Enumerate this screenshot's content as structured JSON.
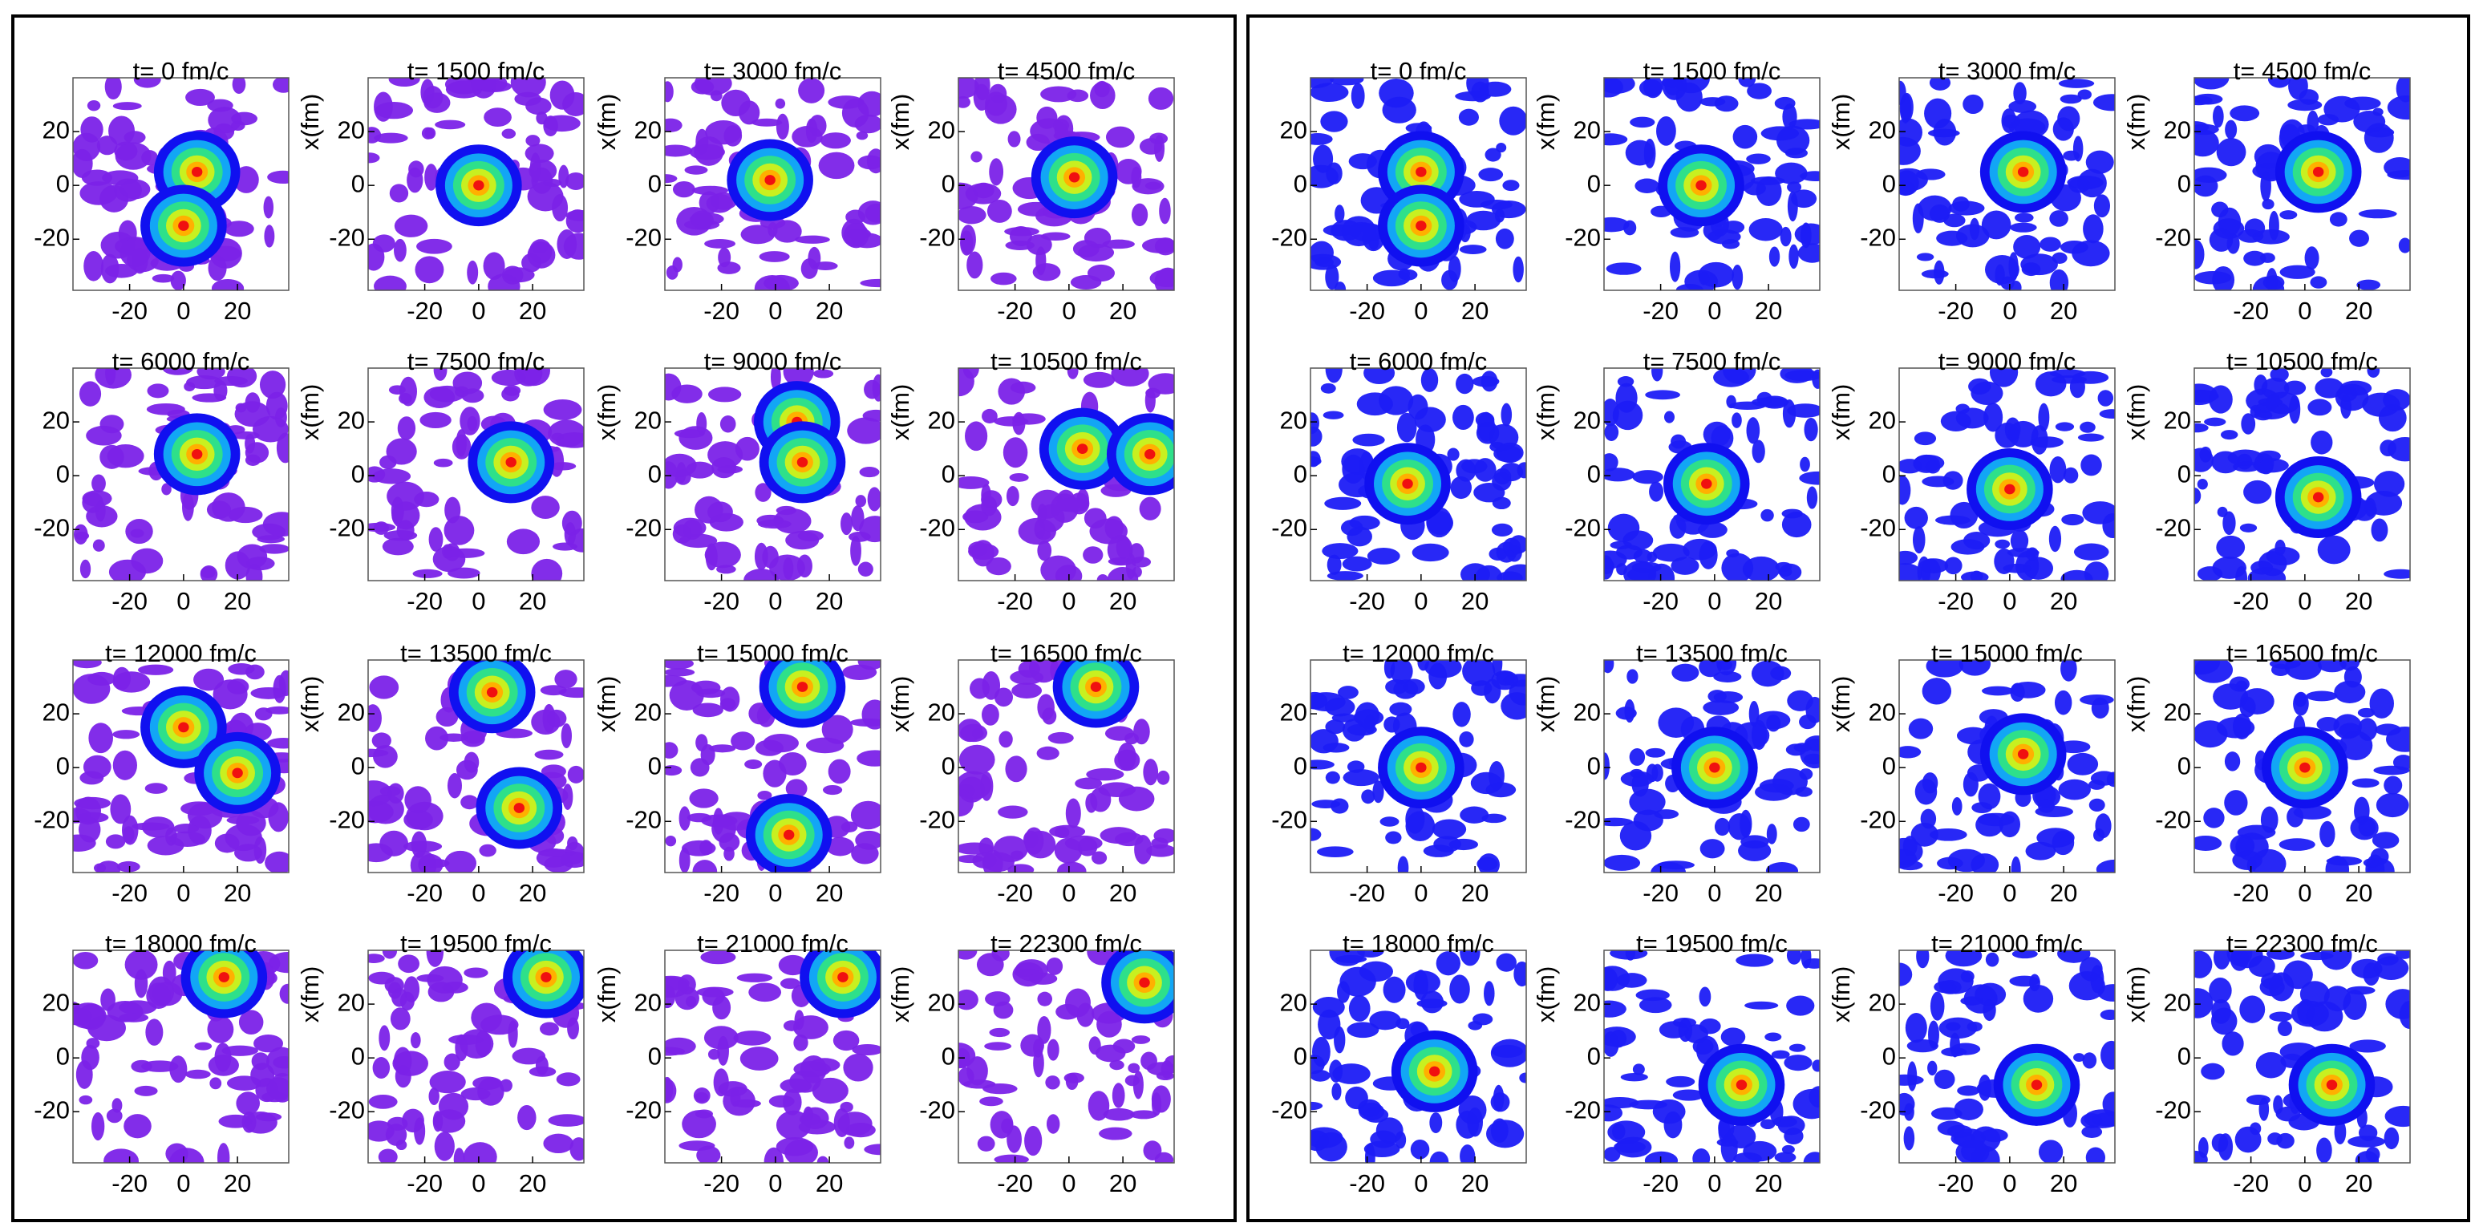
{
  "chart_data": [
    {
      "type": "contour",
      "title": "t= 0 fm/c",
      "xlim": [
        -41,
        39
      ],
      "ylim": [
        -39,
        40
      ],
      "xticks": [
        -20,
        0,
        20
      ],
      "yticks": [
        -20,
        0,
        20
      ],
      "color": "#7b22e8",
      "x": [
        5,
        0
      ],
      "values": [
        5,
        -15
      ]
    },
    {
      "type": "contour",
      "title": "t= 1500 fm/c",
      "xlim": [
        -41,
        39
      ],
      "ylim": [
        -39,
        40
      ],
      "xticks": [
        -20,
        0,
        20
      ],
      "yticks": [
        -20,
        0,
        20
      ],
      "ylabel": "x(fm)",
      "color": "#7b22e8",
      "x": [
        0
      ],
      "values": [
        0
      ]
    },
    {
      "type": "contour",
      "title": "t= 3000 fm/c",
      "xlim": [
        -41,
        39
      ],
      "ylim": [
        -39,
        40
      ],
      "xticks": [
        -20,
        0,
        20
      ],
      "yticks": [
        -20,
        0,
        20
      ],
      "ylabel": "x(fm)",
      "color": "#7b22e8",
      "x": [
        -2
      ],
      "values": [
        2
      ]
    },
    {
      "type": "contour",
      "title": "t= 4500 fm/c",
      "xlim": [
        -41,
        39
      ],
      "ylim": [
        -39,
        40
      ],
      "xticks": [
        -20,
        0,
        20
      ],
      "yticks": [
        -20,
        0,
        20
      ],
      "ylabel": "x(fm)",
      "color": "#7b22e8",
      "x": [
        2
      ],
      "values": [
        3
      ]
    },
    {
      "type": "contour",
      "title": "t= 6000 fm/c",
      "xlim": [
        -41,
        39
      ],
      "ylim": [
        -39,
        40
      ],
      "xticks": [
        -20,
        0,
        20
      ],
      "yticks": [
        -20,
        0,
        20
      ],
      "color": "#7b22e8",
      "x": [
        5
      ],
      "values": [
        8
      ]
    },
    {
      "type": "contour",
      "title": "t= 7500 fm/c",
      "xlim": [
        -41,
        39
      ],
      "ylim": [
        -39,
        40
      ],
      "xticks": [
        -20,
        0,
        20
      ],
      "yticks": [
        -20,
        0,
        20
      ],
      "ylabel": "x(fm)",
      "color": "#7b22e8",
      "x": [
        12
      ],
      "values": [
        5
      ]
    },
    {
      "type": "contour",
      "title": "t= 9000 fm/c",
      "xlim": [
        -41,
        39
      ],
      "ylim": [
        -39,
        40
      ],
      "xticks": [
        -20,
        0,
        20
      ],
      "yticks": [
        -20,
        0,
        20
      ],
      "ylabel": "x(fm)",
      "color": "#7b22e8",
      "x": [
        8,
        10
      ],
      "values": [
        20,
        5
      ]
    },
    {
      "type": "contour",
      "title": "t= 10500 fm/c",
      "xlim": [
        -41,
        39
      ],
      "ylim": [
        -39,
        40
      ],
      "xticks": [
        -20,
        0,
        20
      ],
      "yticks": [
        -20,
        0,
        20
      ],
      "ylabel": "x(fm)",
      "color": "#7b22e8",
      "x": [
        5,
        30
      ],
      "values": [
        10,
        8
      ]
    },
    {
      "type": "contour",
      "title": "t= 12000 fm/c",
      "xlim": [
        -41,
        39
      ],
      "ylim": [
        -39,
        40
      ],
      "xticks": [
        -20,
        0,
        20
      ],
      "yticks": [
        -20,
        0,
        20
      ],
      "color": "#7b22e8",
      "x": [
        0,
        20
      ],
      "values": [
        15,
        -2
      ]
    },
    {
      "type": "contour",
      "title": "t= 13500 fm/c",
      "xlim": [
        -41,
        39
      ],
      "ylim": [
        -39,
        40
      ],
      "xticks": [
        -20,
        0,
        20
      ],
      "yticks": [
        -20,
        0,
        20
      ],
      "ylabel": "x(fm)",
      "color": "#7b22e8",
      "x": [
        5,
        15
      ],
      "values": [
        28,
        -15
      ]
    },
    {
      "type": "contour",
      "title": "t= 15000 fm/c",
      "xlim": [
        -41,
        39
      ],
      "ylim": [
        -39,
        40
      ],
      "xticks": [
        -20,
        0,
        20
      ],
      "yticks": [
        -20,
        0,
        20
      ],
      "ylabel": "x(fm)",
      "color": "#7b22e8",
      "x": [
        10,
        5
      ],
      "values": [
        30,
        -25
      ]
    },
    {
      "type": "contour",
      "title": "t= 16500 fm/c",
      "xlim": [
        -41,
        39
      ],
      "ylim": [
        -39,
        40
      ],
      "xticks": [
        -20,
        0,
        20
      ],
      "yticks": [
        -20,
        0,
        20
      ],
      "ylabel": "x(fm)",
      "color": "#7b22e8",
      "x": [
        10
      ],
      "values": [
        30
      ]
    },
    {
      "type": "contour",
      "title": "t= 18000 fm/c",
      "xlim": [
        -41,
        39
      ],
      "ylim": [
        -39,
        40
      ],
      "xticks": [
        -20,
        0,
        20
      ],
      "yticks": [
        -20,
        0,
        20
      ],
      "color": "#7b22e8",
      "x": [
        15
      ],
      "values": [
        30
      ]
    },
    {
      "type": "contour",
      "title": "t= 19500 fm/c",
      "xlim": [
        -41,
        39
      ],
      "ylim": [
        -39,
        40
      ],
      "xticks": [
        -20,
        0,
        20
      ],
      "yticks": [
        -20,
        0,
        20
      ],
      "ylabel": "x(fm)",
      "color": "#7b22e8",
      "x": [
        25
      ],
      "values": [
        30
      ]
    },
    {
      "type": "contour",
      "title": "t= 21000 fm/c",
      "xlim": [
        -41,
        39
      ],
      "ylim": [
        -39,
        40
      ],
      "xticks": [
        -20,
        0,
        20
      ],
      "yticks": [
        -20,
        0,
        20
      ],
      "ylabel": "x(fm)",
      "color": "#7b22e8",
      "x": [
        25
      ],
      "values": [
        30
      ]
    },
    {
      "type": "contour",
      "title": "t= 22300 fm/c",
      "xlim": [
        -41,
        39
      ],
      "ylim": [
        -39,
        40
      ],
      "xticks": [
        -20,
        0,
        20
      ],
      "yticks": [
        -20,
        0,
        20
      ],
      "ylabel": "x(fm)",
      "color": "#7b22e8",
      "x": [
        28
      ],
      "values": [
        28
      ]
    },
    {
      "type": "contour",
      "title": "t= 0 fm/c",
      "xlim": [
        -41,
        39
      ],
      "ylim": [
        -39,
        40
      ],
      "xticks": [
        -20,
        0,
        20
      ],
      "yticks": [
        -20,
        0,
        20
      ],
      "color": "#1c1cf5",
      "x": [
        0,
        0
      ],
      "values": [
        5,
        -15
      ]
    },
    {
      "type": "contour",
      "title": "t= 1500 fm/c",
      "xlim": [
        -41,
        39
      ],
      "ylim": [
        -39,
        40
      ],
      "xticks": [
        -20,
        0,
        20
      ],
      "yticks": [
        -20,
        0,
        20
      ],
      "ylabel": "x(fm)",
      "color": "#1c1cf5",
      "x": [
        -5
      ],
      "values": [
        0
      ]
    },
    {
      "type": "contour",
      "title": "t= 3000 fm/c",
      "xlim": [
        -41,
        39
      ],
      "ylim": [
        -39,
        40
      ],
      "xticks": [
        -20,
        0,
        20
      ],
      "yticks": [
        -20,
        0,
        20
      ],
      "ylabel": "x(fm)",
      "color": "#1c1cf5",
      "x": [
        5
      ],
      "values": [
        5
      ]
    },
    {
      "type": "contour",
      "title": "t= 4500 fm/c",
      "xlim": [
        -41,
        39
      ],
      "ylim": [
        -39,
        40
      ],
      "xticks": [
        -20,
        0,
        20
      ],
      "yticks": [
        -20,
        0,
        20
      ],
      "ylabel": "x(fm)",
      "color": "#1c1cf5",
      "x": [
        5
      ],
      "values": [
        5
      ]
    },
    {
      "type": "contour",
      "title": "t= 6000 fm/c",
      "xlim": [
        -41,
        39
      ],
      "ylim": [
        -39,
        40
      ],
      "xticks": [
        -20,
        0,
        20
      ],
      "yticks": [
        -20,
        0,
        20
      ],
      "color": "#1c1cf5",
      "x": [
        -5
      ],
      "values": [
        -3
      ]
    },
    {
      "type": "contour",
      "title": "t= 7500 fm/c",
      "xlim": [
        -41,
        39
      ],
      "ylim": [
        -39,
        40
      ],
      "xticks": [
        -20,
        0,
        20
      ],
      "yticks": [
        -20,
        0,
        20
      ],
      "ylabel": "x(fm)",
      "color": "#1c1cf5",
      "x": [
        -3
      ],
      "values": [
        -3
      ]
    },
    {
      "type": "contour",
      "title": "t= 9000 fm/c",
      "xlim": [
        -41,
        39
      ],
      "ylim": [
        -39,
        40
      ],
      "xticks": [
        -20,
        0,
        20
      ],
      "yticks": [
        -20,
        0,
        20
      ],
      "ylabel": "x(fm)",
      "color": "#1c1cf5",
      "x": [
        0
      ],
      "values": [
        -5
      ]
    },
    {
      "type": "contour",
      "title": "t= 10500 fm/c",
      "xlim": [
        -41,
        39
      ],
      "ylim": [
        -39,
        40
      ],
      "xticks": [
        -20,
        0,
        20
      ],
      "yticks": [
        -20,
        0,
        20
      ],
      "ylabel": "x(fm)",
      "color": "#1c1cf5",
      "x": [
        5
      ],
      "values": [
        -8
      ]
    },
    {
      "type": "contour",
      "title": "t= 12000 fm/c",
      "xlim": [
        -41,
        39
      ],
      "ylim": [
        -39,
        40
      ],
      "xticks": [
        -20,
        0,
        20
      ],
      "yticks": [
        -20,
        0,
        20
      ],
      "color": "#1c1cf5",
      "x": [
        0
      ],
      "values": [
        0
      ]
    },
    {
      "type": "contour",
      "title": "t= 13500 fm/c",
      "xlim": [
        -41,
        39
      ],
      "ylim": [
        -39,
        40
      ],
      "xticks": [
        -20,
        0,
        20
      ],
      "yticks": [
        -20,
        0,
        20
      ],
      "ylabel": "x(fm)",
      "color": "#1c1cf5",
      "x": [
        0
      ],
      "values": [
        0
      ]
    },
    {
      "type": "contour",
      "title": "t= 15000 fm/c",
      "xlim": [
        -41,
        39
      ],
      "ylim": [
        -39,
        40
      ],
      "xticks": [
        -20,
        0,
        20
      ],
      "yticks": [
        -20,
        0,
        20
      ],
      "ylabel": "x(fm)",
      "color": "#1c1cf5",
      "x": [
        5
      ],
      "values": [
        5
      ]
    },
    {
      "type": "contour",
      "title": "t= 16500 fm/c",
      "xlim": [
        -41,
        39
      ],
      "ylim": [
        -39,
        40
      ],
      "xticks": [
        -20,
        0,
        20
      ],
      "yticks": [
        -20,
        0,
        20
      ],
      "ylabel": "x(fm)",
      "color": "#1c1cf5",
      "x": [
        0
      ],
      "values": [
        0
      ]
    },
    {
      "type": "contour",
      "title": "t= 18000 fm/c",
      "xlim": [
        -41,
        39
      ],
      "ylim": [
        -39,
        40
      ],
      "xticks": [
        -20,
        0,
        20
      ],
      "yticks": [
        -20,
        0,
        20
      ],
      "color": "#1c1cf5",
      "x": [
        5
      ],
      "values": [
        -5
      ]
    },
    {
      "type": "contour",
      "title": "t= 19500 fm/c",
      "xlim": [
        -41,
        39
      ],
      "ylim": [
        -39,
        40
      ],
      "xticks": [
        -20,
        0,
        20
      ],
      "yticks": [
        -20,
        0,
        20
      ],
      "ylabel": "x(fm)",
      "color": "#1c1cf5",
      "x": [
        10
      ],
      "values": [
        -10
      ]
    },
    {
      "type": "contour",
      "title": "t= 21000 fm/c",
      "xlim": [
        -41,
        39
      ],
      "ylim": [
        -39,
        40
      ],
      "xticks": [
        -20,
        0,
        20
      ],
      "yticks": [
        -20,
        0,
        20
      ],
      "ylabel": "x(fm)",
      "color": "#1c1cf5",
      "x": [
        10
      ],
      "values": [
        -10
      ]
    },
    {
      "type": "contour",
      "title": "t= 22300 fm/c",
      "xlim": [
        -41,
        39
      ],
      "ylim": [
        -39,
        40
      ],
      "xticks": [
        -20,
        0,
        20
      ],
      "yticks": [
        -20,
        0,
        20
      ],
      "ylabel": "x(fm)",
      "color": "#1c1cf5",
      "x": [
        10
      ],
      "values": [
        -10
      ]
    }
  ]
}
